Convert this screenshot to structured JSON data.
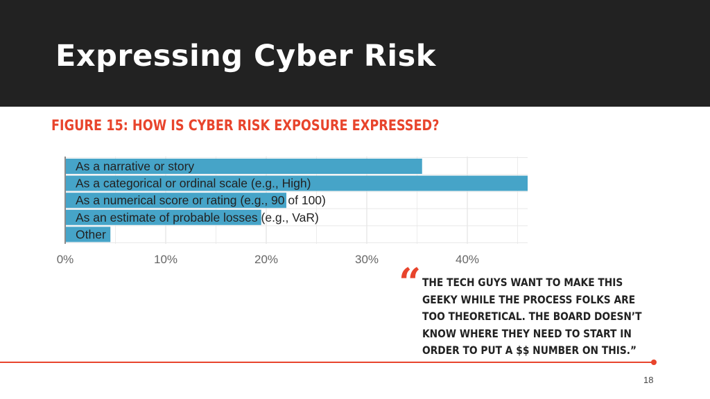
{
  "slide": {
    "title": "Expressing Cyber Risk",
    "page_number": "18"
  },
  "figure_title": "FIGURE 15: HOW IS CYBER RISK EXPOSURE EXPRESSED?",
  "quote": {
    "mark": "“",
    "text": "THE TECH GUYS WANT TO MAKE THIS GEEKY WHILE THE PROCESS FOLKS ARE TOO THEORETICAL. THE BOARD DOESN’T KNOW WHERE THEY NEED TO START IN ORDER TO PUT A $$ NUMBER ON THIS.”"
  },
  "colors": {
    "bar": "#46a4c8",
    "accent": "#e8442c",
    "header_bg": "#222222"
  },
  "chart_data": {
    "type": "bar",
    "orientation": "horizontal",
    "title": "FIGURE 15: HOW IS CYBER RISK EXPOSURE EXPRESSED?",
    "categories": [
      "As a narrative or story",
      "As a categorical or ordinal scale (e.g., High)",
      "As a numerical score or rating (e.g., 90 of 100)",
      "As an estimate of probable losses (e.g., VaR)",
      "Other"
    ],
    "values": [
      35.5,
      46.0,
      22.0,
      19.5,
      4.5
    ],
    "unit": "%",
    "xlim": [
      0,
      46
    ],
    "x_ticks": [
      "0%",
      "10%",
      "20%",
      "30%",
      "40%"
    ],
    "x_tick_values": [
      0,
      10,
      20,
      30,
      40
    ],
    "grid": true
  }
}
